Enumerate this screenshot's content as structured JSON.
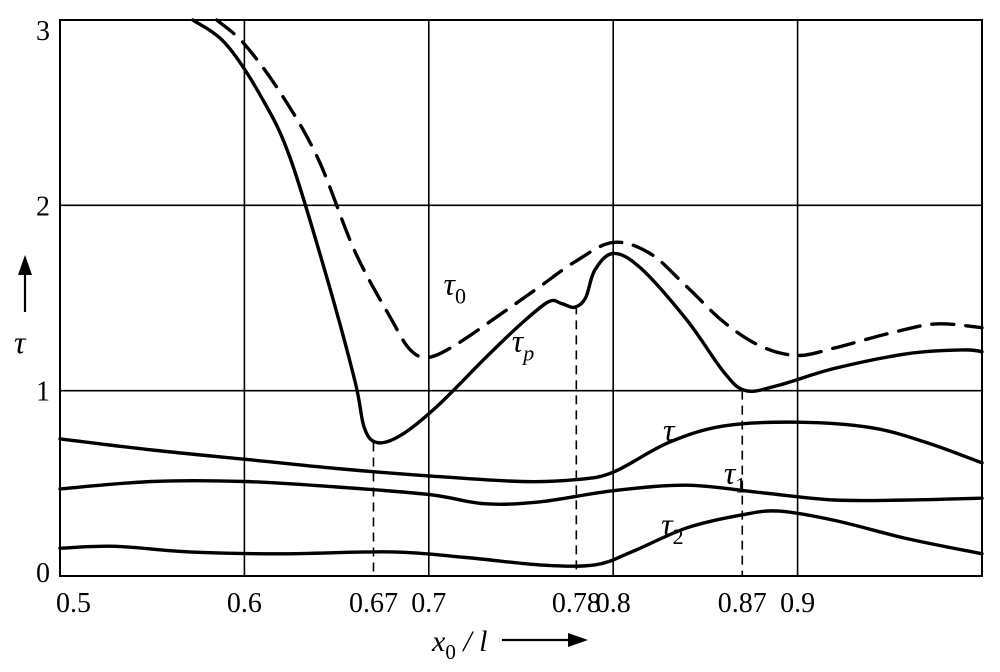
{
  "chart_data": {
    "type": "line",
    "xlabel": {
      "var": "x",
      "sub": "0",
      "rest": " / l"
    },
    "ylabel": "τ",
    "xlim": [
      0.5,
      1.0
    ],
    "ylim": [
      0,
      3
    ],
    "grid": true,
    "x_ticks": [
      {
        "value": 0.5,
        "label": "0.5"
      },
      {
        "value": 0.6,
        "label": "0.6"
      },
      {
        "value": 0.67,
        "label": "0.67"
      },
      {
        "value": 0.7,
        "label": "0.7"
      },
      {
        "value": 0.78,
        "label": "0.78"
      },
      {
        "value": 0.8,
        "label": "0.8"
      },
      {
        "value": 0.87,
        "label": "0.87"
      },
      {
        "value": 0.9,
        "label": "0.9"
      }
    ],
    "y_ticks": [
      {
        "value": 0,
        "label": "0"
      },
      {
        "value": 1,
        "label": "1"
      },
      {
        "value": 2,
        "label": "2"
      },
      {
        "value": 3,
        "label": "3"
      }
    ],
    "x_gridlines": [
      0.6,
      0.7,
      0.8,
      0.9
    ],
    "y_gridlines": [
      1,
      2
    ],
    "reference_lines": [
      {
        "x": 0.67,
        "y_top": 0.72
      },
      {
        "x": 0.78,
        "y_top": 1.46
      },
      {
        "x": 0.87,
        "y_top": 1.0
      }
    ],
    "series": [
      {
        "name": "τ0",
        "base": "τ",
        "sub": "0",
        "style": "dashed",
        "label_at": [
          0.708,
          1.52
        ],
        "points": [
          [
            0.585,
            3.0
          ],
          [
            0.6,
            2.87
          ],
          [
            0.62,
            2.6
          ],
          [
            0.64,
            2.25
          ],
          [
            0.66,
            1.75
          ],
          [
            0.68,
            1.38
          ],
          [
            0.69,
            1.22
          ],
          [
            0.7,
            1.18
          ],
          [
            0.715,
            1.25
          ],
          [
            0.74,
            1.42
          ],
          [
            0.76,
            1.56
          ],
          [
            0.78,
            1.7
          ],
          [
            0.8,
            1.8
          ],
          [
            0.82,
            1.74
          ],
          [
            0.84,
            1.56
          ],
          [
            0.86,
            1.37
          ],
          [
            0.88,
            1.24
          ],
          [
            0.9,
            1.19
          ],
          [
            0.92,
            1.23
          ],
          [
            0.95,
            1.31
          ],
          [
            0.975,
            1.36
          ],
          [
            1.0,
            1.34
          ]
        ]
      },
      {
        "name": "τp",
        "base": "τ",
        "sub": "p",
        "style": "solid",
        "label_at": [
          0.745,
          1.21
        ],
        "points": [
          [
            0.572,
            3.0
          ],
          [
            0.59,
            2.87
          ],
          [
            0.61,
            2.57
          ],
          [
            0.625,
            2.25
          ],
          [
            0.645,
            1.6
          ],
          [
            0.66,
            1.05
          ],
          [
            0.665,
            0.8
          ],
          [
            0.672,
            0.72
          ],
          [
            0.685,
            0.76
          ],
          [
            0.705,
            0.92
          ],
          [
            0.73,
            1.17
          ],
          [
            0.75,
            1.36
          ],
          [
            0.765,
            1.48
          ],
          [
            0.772,
            1.47
          ],
          [
            0.779,
            1.45
          ],
          [
            0.785,
            1.5
          ],
          [
            0.79,
            1.65
          ],
          [
            0.8,
            1.74
          ],
          [
            0.815,
            1.66
          ],
          [
            0.84,
            1.38
          ],
          [
            0.86,
            1.1
          ],
          [
            0.872,
            1.0
          ],
          [
            0.89,
            1.03
          ],
          [
            0.92,
            1.12
          ],
          [
            0.96,
            1.2
          ],
          [
            0.99,
            1.22
          ],
          [
            1.0,
            1.21
          ]
        ]
      },
      {
        "name": "τ",
        "base": "τ",
        "sub": "",
        "style": "solid",
        "label_at": [
          0.827,
          0.73
        ],
        "points": [
          [
            0.5,
            0.74
          ],
          [
            0.55,
            0.68
          ],
          [
            0.6,
            0.63
          ],
          [
            0.65,
            0.58
          ],
          [
            0.7,
            0.54
          ],
          [
            0.75,
            0.51
          ],
          [
            0.78,
            0.52
          ],
          [
            0.8,
            0.56
          ],
          [
            0.83,
            0.72
          ],
          [
            0.86,
            0.81
          ],
          [
            0.9,
            0.83
          ],
          [
            0.94,
            0.8
          ],
          [
            0.97,
            0.72
          ],
          [
            1.0,
            0.61
          ]
        ]
      },
      {
        "name": "τ1",
        "base": "τ",
        "sub": "1",
        "style": "solid",
        "label_at": [
          0.86,
          0.5
        ],
        "points": [
          [
            0.5,
            0.47
          ],
          [
            0.55,
            0.51
          ],
          [
            0.6,
            0.51
          ],
          [
            0.65,
            0.48
          ],
          [
            0.7,
            0.44
          ],
          [
            0.73,
            0.39
          ],
          [
            0.76,
            0.4
          ],
          [
            0.8,
            0.46
          ],
          [
            0.84,
            0.49
          ],
          [
            0.88,
            0.45
          ],
          [
            0.92,
            0.41
          ],
          [
            0.96,
            0.41
          ],
          [
            1.0,
            0.42
          ]
        ]
      },
      {
        "name": "τ2",
        "base": "τ",
        "sub": "2",
        "style": "solid",
        "label_at": [
          0.826,
          0.22
        ],
        "points": [
          [
            0.5,
            0.15
          ],
          [
            0.53,
            0.16
          ],
          [
            0.57,
            0.13
          ],
          [
            0.62,
            0.12
          ],
          [
            0.68,
            0.13
          ],
          [
            0.72,
            0.1
          ],
          [
            0.76,
            0.06
          ],
          [
            0.79,
            0.06
          ],
          [
            0.81,
            0.13
          ],
          [
            0.84,
            0.26
          ],
          [
            0.87,
            0.33
          ],
          [
            0.89,
            0.35
          ],
          [
            0.92,
            0.3
          ],
          [
            0.96,
            0.2
          ],
          [
            1.0,
            0.12
          ]
        ]
      }
    ]
  }
}
